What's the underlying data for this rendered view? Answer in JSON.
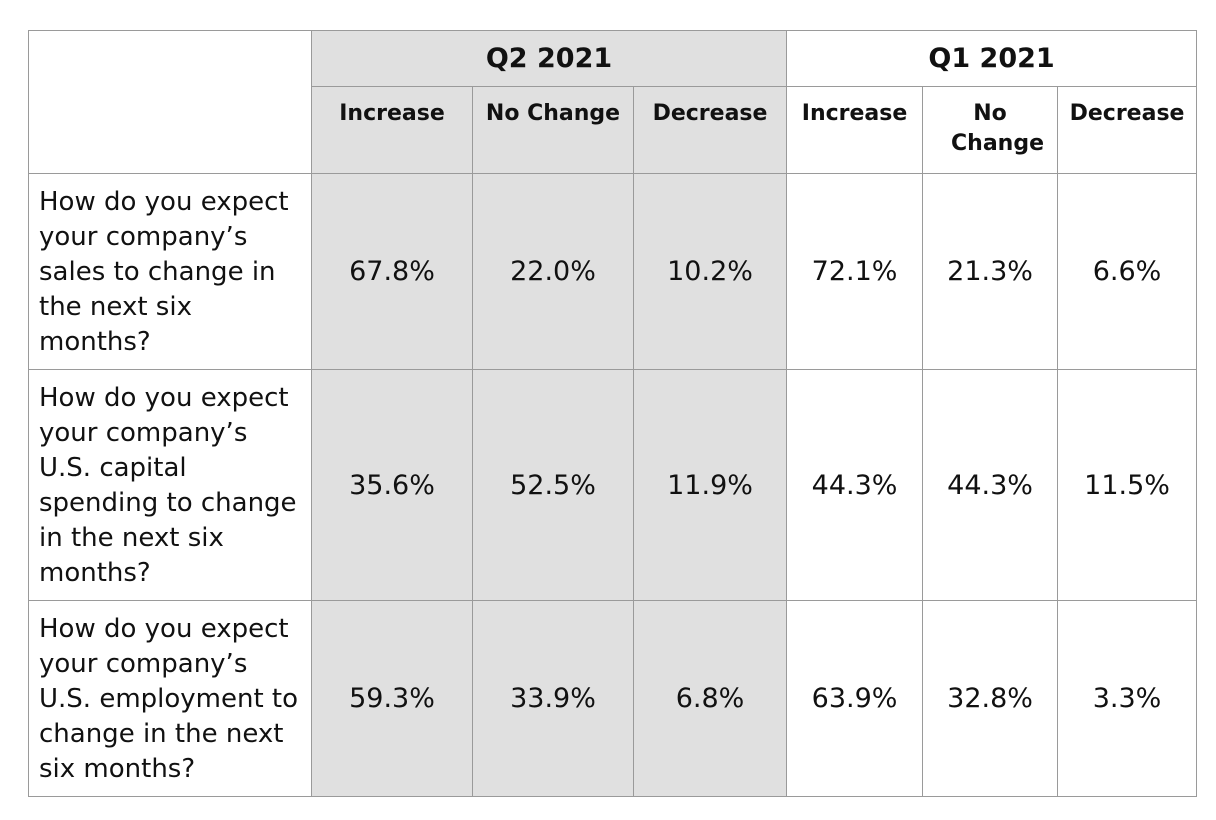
{
  "periods": {
    "current": "Q2 2021",
    "previous": "Q1 2021"
  },
  "column_headers": {
    "q2_increase": "Increase",
    "q2_no_change": "No Change",
    "q2_decrease": "Decrease",
    "q1_increase": "Increase",
    "q1_no_change": "No Change",
    "q1_decrease": "Decrease"
  },
  "shade_color": "#e0e0e0",
  "rows": [
    {
      "question": "How do you expect your company’s sales to change in the next six months?",
      "q2": {
        "increase": "67.8%",
        "no_change": "22.0%",
        "decrease": "10.2%"
      },
      "q1": {
        "increase": "72.1%",
        "no_change": "21.3%",
        "decrease": "6.6%"
      }
    },
    {
      "question": "How do you expect your company’s U.S. capital spending to change in the next six months?",
      "q2": {
        "increase": "35.6%",
        "no_change": "52.5%",
        "decrease": "11.9%"
      },
      "q1": {
        "increase": "44.3%",
        "no_change": "44.3%",
        "decrease": "11.5%"
      }
    },
    {
      "question": "How do you expect your company’s U.S. employment to change in the next six months?",
      "q2": {
        "increase": "59.3%",
        "no_change": "33.9%",
        "decrease": "6.8%"
      },
      "q1": {
        "increase": "63.9%",
        "no_change": "32.8%",
        "decrease": "3.3%"
      }
    }
  ]
}
